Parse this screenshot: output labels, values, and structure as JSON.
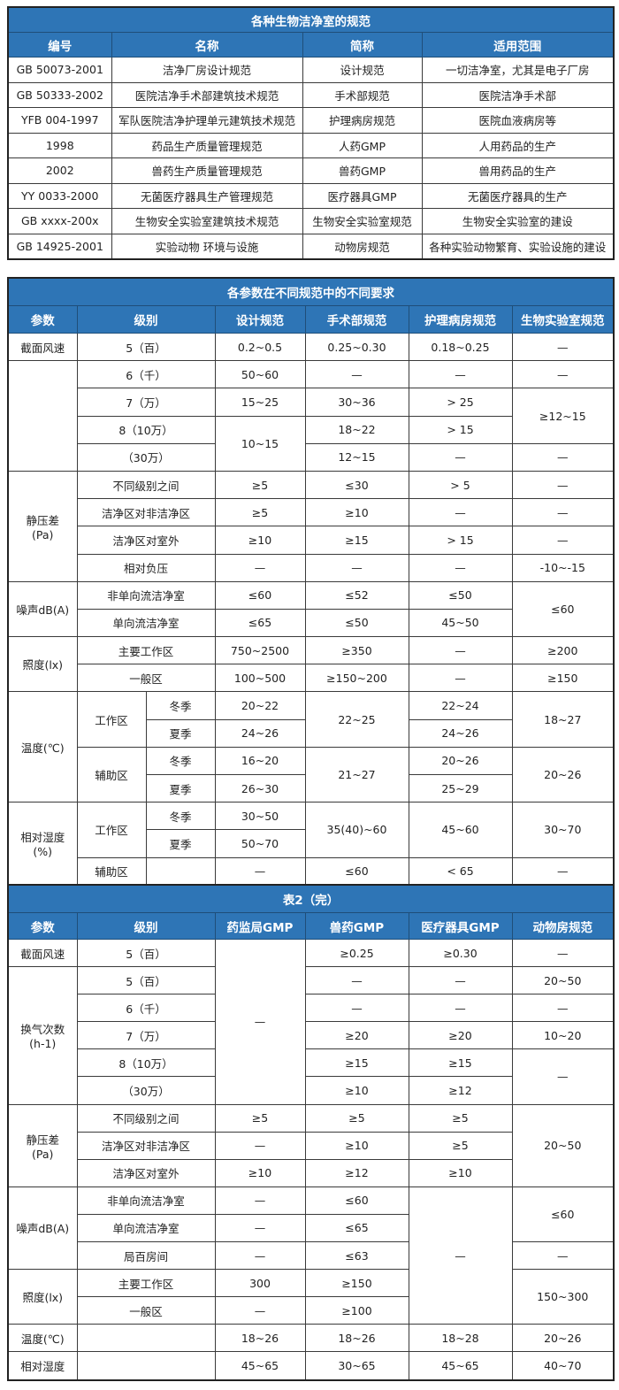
{
  "colors": {
    "header_bg": "#2e75b6",
    "header_text": "#ffffff",
    "border": "#3a3a3a"
  },
  "table1": {
    "title": "各种生物洁净室的规范",
    "headers": [
      "编号",
      "名称",
      "简称",
      "适用范围"
    ],
    "rows": [
      [
        "GB 50073-2001",
        "洁净厂房设计规范",
        "设计规范",
        "一切洁净室，尤其是电子厂房"
      ],
      [
        "GB 50333-2002",
        "医院洁净手术部建筑技术规范",
        "手术部规范",
        "医院洁净手术部"
      ],
      [
        "YFB 004-1997",
        "军队医院洁净护理单元建筑技术规范",
        "护理病房规范",
        "医院血液病房等"
      ],
      [
        "1998",
        "药品生产质量管理规范",
        "人药GMP",
        "人用药品的生产"
      ],
      [
        "2002",
        "兽药生产质量管理规范",
        "兽药GMP",
        "兽用药品的生产"
      ],
      [
        "YY 0033-2000",
        "无菌医疗器具生产管理规范",
        "医疗器具GMP",
        "无菌医疗器具的生产"
      ],
      [
        "GB xxxx-200x",
        "生物安全实验室建筑技术规范",
        "生物安全实验室规范",
        "生物安全实验室的建设"
      ],
      [
        "GB 14925-2001",
        "实验动物 环境与设施",
        "动物房规范",
        "各种实验动物繁育、实验设施的建设"
      ]
    ]
  },
  "table2": {
    "title": "各参数在不同规范中的不同要求",
    "headers": [
      "参数",
      "级别",
      "设计规范",
      "手术部规范",
      "护理病房规范",
      "生物实验室规范"
    ],
    "rows": [
      [
        "截面风速",
        "5（百）",
        "0.2~0.5",
        "0.25~0.30",
        "0.18~0.25",
        "—"
      ],
      [
        "",
        "6（千）",
        "50~60",
        "—",
        "—",
        "—"
      ],
      [
        "7（万）",
        "15~25",
        "30~36",
        "> 25",
        "≥12~15"
      ],
      [
        "8（10万）",
        "10~15",
        "18~22",
        "> 15"
      ],
      [
        "（30万）",
        "12~15",
        "—",
        "—"
      ],
      [
        "静压差\n(Pa)",
        "不同级别之间",
        "≥5",
        "≤30",
        "> 5",
        "—"
      ],
      [
        "洁净区对非洁净区",
        "≥5",
        "≥10",
        "—",
        "—"
      ],
      [
        "洁净区对室外",
        "≥10",
        "≥15",
        "> 15",
        "—"
      ],
      [
        "相对负压",
        "—",
        "—",
        "—",
        "-10~-15"
      ],
      [
        "噪声dB(A)",
        "非单向流洁净室",
        "≤60",
        "≤52",
        "≤50",
        "≤60"
      ],
      [
        "单向流洁净室",
        "≤65",
        "≤50",
        "45~50"
      ],
      [
        "照度(lx)",
        "主要工作区",
        "750~2500",
        "≥350",
        "—",
        "≥200"
      ],
      [
        "一般区",
        "100~500",
        "≥150~200",
        "—",
        "≥150"
      ],
      [
        "温度(℃)",
        "工作区",
        "冬季",
        "20~22",
        "22~25",
        "22~24",
        "18~27"
      ],
      [
        "夏季",
        "24~26",
        "24~26"
      ],
      [
        "辅助区",
        "冬季",
        "16~20",
        "21~27",
        "20~26",
        "20~26"
      ],
      [
        "夏季",
        "26~30",
        "25~29"
      ],
      [
        "相对湿度\n(%)",
        "工作区",
        "冬季",
        "30~50",
        "35(40)~60",
        "45~60",
        "30~70"
      ],
      [
        "夏季",
        "50~70"
      ],
      [
        "辅助区",
        "",
        "—",
        "≤60",
        "< 65",
        "—"
      ]
    ]
  },
  "table3": {
    "title": "表2（完）",
    "headers": [
      "参数",
      "级别",
      "药监局GMP",
      "兽药GMP",
      "医疗器具GMP",
      "动物房规范"
    ],
    "rows": [
      [
        "截面风速",
        "5（百）",
        "—",
        "≥0.25",
        "≥0.30",
        "—"
      ],
      [
        "换气次数\n(h-1)",
        "5（百）",
        "—",
        "—",
        "20~50"
      ],
      [
        "6（千）",
        "—",
        "—",
        "—"
      ],
      [
        "7（万）",
        "≥20",
        "≥20",
        "10~20"
      ],
      [
        "8（10万）",
        "≥15",
        "≥15",
        "—"
      ],
      [
        "（30万）",
        "≥10",
        "≥12"
      ],
      [
        "静压差\n(Pa)",
        "不同级别之间",
        "≥5",
        "≥5",
        "≥5",
        "20~50"
      ],
      [
        "洁净区对非洁净区",
        "—",
        "≥10",
        "≥5"
      ],
      [
        "洁净区对室外",
        "≥10",
        "≥12",
        "≥10"
      ],
      [
        "噪声dB(A)",
        "非单向流洁净室",
        "—",
        "≤60",
        "—",
        "≤60"
      ],
      [
        "单向流洁净室",
        "—",
        "≤65"
      ],
      [
        "局百房间",
        "—",
        "≤63",
        "—"
      ],
      [
        "照度(lx)",
        "主要工作区",
        "300",
        "≥150",
        "150~300"
      ],
      [
        "一般区",
        "—",
        "≥100"
      ],
      [
        "温度(℃)",
        "",
        "18~26",
        "18~26",
        "18~28",
        "20~26"
      ],
      [
        "相对湿度",
        "",
        "45~65",
        "30~65",
        "45~65",
        "40~70"
      ]
    ]
  }
}
